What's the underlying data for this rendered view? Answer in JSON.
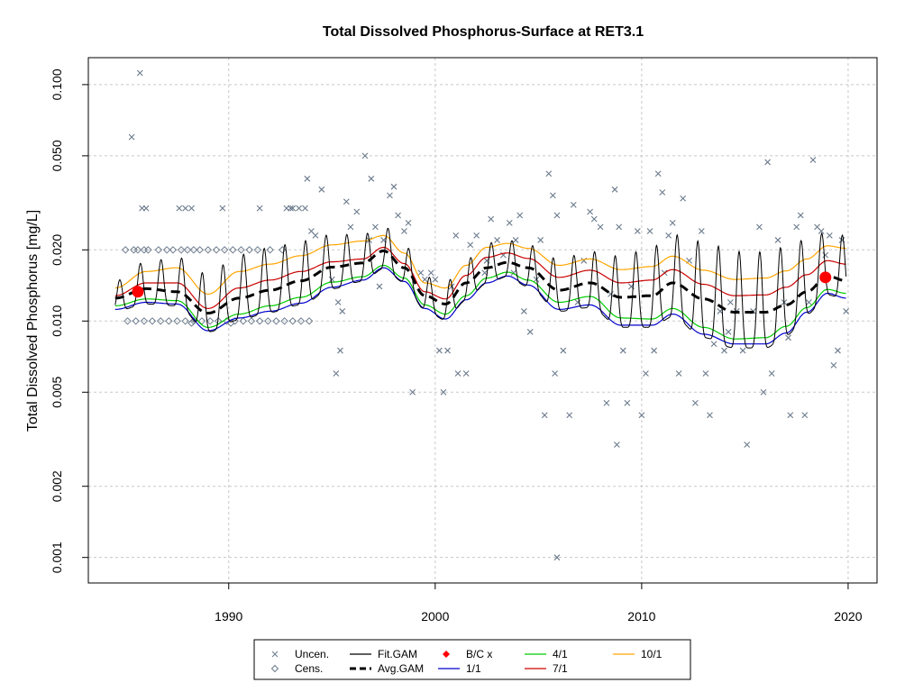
{
  "chart_data": {
    "type": "scatter",
    "title": "Total Dissolved Phosphorus-Surface at RET3.1",
    "xlabel": "",
    "ylabel": "Total Dissolved Phosphorus [mg/L]",
    "ylog": true,
    "xlim": [
      1983.2,
      2021.4
    ],
    "ylim": [
      0.00078,
      0.13
    ],
    "x_ticks": [
      1990,
      2000,
      2010,
      2020
    ],
    "x_tick_labels": [
      "1990",
      "2000",
      "2010",
      "2020"
    ],
    "y_ticks": [
      0.001,
      0.002,
      0.005,
      0.01,
      0.02,
      0.05,
      0.1
    ],
    "y_tick_labels": [
      "0.001",
      "0.002",
      "0.005",
      "0.010",
      "0.020",
      "0.050",
      "0.100"
    ],
    "grid": true,
    "legend_placement": "bottom",
    "colors": {
      "uncen": "#6b7a8c",
      "cens": "#6b7a8c",
      "fit_gam": "#000000",
      "avg_gam": "#000000",
      "bc": "#ff0000",
      "q1": "#0000cc",
      "q4": "#00cc00",
      "q7": "#cc0000",
      "q10": "#ffa500",
      "grid": "#c8c8c8"
    },
    "legend": [
      {
        "label": "Uncen.",
        "key": "uncen",
        "symbol": "x"
      },
      {
        "label": "Cens.",
        "key": "cens",
        "symbol": "diamond-open"
      },
      {
        "label": "Fit.GAM",
        "key": "fit_gam",
        "symbol": "line"
      },
      {
        "label": "Avg.GAM",
        "key": "avg_gam",
        "symbol": "dashed"
      },
      {
        "label": "B/C x",
        "key": "bc",
        "symbol": "diamond-filled"
      },
      {
        "label": "1/1",
        "key": "q1",
        "symbol": "line"
      },
      {
        "label": "4/1",
        "key": "q4",
        "symbol": "line"
      },
      {
        "label": "7/1",
        "key": "q7",
        "symbol": "line"
      },
      {
        "label": "10/1",
        "key": "q10",
        "symbol": "line"
      }
    ],
    "bc_points": [
      {
        "x": 1985.6,
        "y": 0.0133
      },
      {
        "x": 2018.9,
        "y": 0.0153
      }
    ],
    "avg_gam": {
      "x": [
        1984.5,
        1986,
        1987.5,
        1989,
        1990.5,
        1992,
        1993.5,
        1995,
        1996.5,
        1997.5,
        1998.5,
        1999.5,
        2000.5,
        2001.5,
        2002.5,
        2003.5,
        2004.5,
        2006,
        2007.5,
        2009,
        2010.5,
        2011.5,
        2013,
        2014.5,
        2016,
        2017,
        2018,
        2019,
        2019.9
      ],
      "y": [
        0.0125,
        0.0137,
        0.0133,
        0.0108,
        0.0125,
        0.0135,
        0.0148,
        0.0169,
        0.0176,
        0.0198,
        0.0168,
        0.0128,
        0.0118,
        0.0145,
        0.0168,
        0.0177,
        0.0168,
        0.0135,
        0.0145,
        0.0126,
        0.0128,
        0.0145,
        0.0124,
        0.0109,
        0.0109,
        0.0117,
        0.0133,
        0.0155,
        0.0148
      ]
    },
    "seasonal": {
      "q1": {
        "x": [
          1984.5,
          1986,
          1987.5,
          1989,
          1990.5,
          1992,
          1993.5,
          1995,
          1996.5,
          1997.5,
          1998.5,
          1999.5,
          2000.5,
          2001.5,
          2002.5,
          2003.5,
          2004.5,
          2006,
          2007.5,
          2009,
          2010.5,
          2011.5,
          2013,
          2014.5,
          2016,
          2017,
          2018,
          2019,
          2019.9
        ],
        "y": [
          0.0112,
          0.012,
          0.0118,
          0.0091,
          0.0103,
          0.011,
          0.0119,
          0.0139,
          0.0149,
          0.0168,
          0.0147,
          0.0113,
          0.0102,
          0.0123,
          0.0145,
          0.0155,
          0.0142,
          0.0112,
          0.0117,
          0.0096,
          0.0096,
          0.0107,
          0.0088,
          0.008,
          0.008,
          0.0089,
          0.0109,
          0.0131,
          0.0125
        ]
      },
      "q4": {
        "x": [
          1984.5,
          1986,
          1987.5,
          1989,
          1990.5,
          1992,
          1993.5,
          1995,
          1996.5,
          1997.5,
          1998.5,
          1999.5,
          2000.5,
          2001.5,
          2002.5,
          2003.5,
          2004.5,
          2006,
          2007.5,
          2009,
          2010.5,
          2011.5,
          2013,
          2014.5,
          2016,
          2017,
          2018,
          2019,
          2019.9
        ],
        "y": [
          0.0116,
          0.0124,
          0.0122,
          0.0094,
          0.0107,
          0.0116,
          0.0126,
          0.0146,
          0.0154,
          0.0172,
          0.0152,
          0.0117,
          0.0107,
          0.0128,
          0.0152,
          0.0161,
          0.0149,
          0.012,
          0.0127,
          0.0103,
          0.0102,
          0.0113,
          0.0094,
          0.0084,
          0.0085,
          0.0095,
          0.0114,
          0.0136,
          0.0131
        ]
      },
      "q7": {
        "x": [
          1984.5,
          1986,
          1987.5,
          1989,
          1990.5,
          1992,
          1993.5,
          1995,
          1996.5,
          1997.5,
          1998.5,
          1999.5,
          2000.5,
          2001.5,
          2002.5,
          2003.5,
          2004.5,
          2006,
          2007.5,
          2009,
          2010.5,
          2011.5,
          2013,
          2014.5,
          2016,
          2017,
          2018,
          2019,
          2019.9
        ],
        "y": [
          0.0128,
          0.0145,
          0.0145,
          0.0113,
          0.0138,
          0.0149,
          0.0162,
          0.0178,
          0.0183,
          0.0205,
          0.0175,
          0.0133,
          0.0124,
          0.0156,
          0.0186,
          0.0194,
          0.0184,
          0.0153,
          0.0164,
          0.0145,
          0.0149,
          0.0165,
          0.0143,
          0.0128,
          0.0129,
          0.0139,
          0.0157,
          0.018,
          0.0174
        ]
      },
      "q10": {
        "x": [
          1984.5,
          1986,
          1987.5,
          1989,
          1990.5,
          1992,
          1993.5,
          1995,
          1996.5,
          1997.5,
          1998.5,
          1999.5,
          2000.5,
          2001.5,
          2002.5,
          2003.5,
          2004.5,
          2006,
          2007.5,
          2009,
          2010.5,
          2011.5,
          2013,
          2014.5,
          2016,
          2017,
          2018,
          2019,
          2019.9
        ],
        "y": [
          0.0138,
          0.0162,
          0.0168,
          0.013,
          0.0162,
          0.0174,
          0.0189,
          0.021,
          0.0218,
          0.023,
          0.0194,
          0.0145,
          0.0138,
          0.0172,
          0.0205,
          0.0213,
          0.0203,
          0.0172,
          0.0183,
          0.0165,
          0.017,
          0.0188,
          0.0164,
          0.015,
          0.0152,
          0.0163,
          0.0183,
          0.0208,
          0.0203
        ]
      }
    },
    "fit_gam": {
      "envelope_x": [
        1984.5,
        1986,
        1987.5,
        1989,
        1990.5,
        1992,
        1993.5,
        1995,
        1996.5,
        1997.5,
        1998.5,
        1999.5,
        2000.5,
        2001.5,
        2002.5,
        2003.5,
        2004.5,
        2006,
        2007.5,
        2009,
        2010.5,
        2011.5,
        2013,
        2014.5,
        2016,
        2017,
        2018,
        2019,
        2019.9
      ],
      "envelope_low": [
        0.011,
        0.0118,
        0.0116,
        0.009,
        0.0101,
        0.0109,
        0.0117,
        0.0137,
        0.0147,
        0.0166,
        0.0146,
        0.0112,
        0.0101,
        0.0122,
        0.0144,
        0.0154,
        0.014,
        0.011,
        0.0114,
        0.0094,
        0.0094,
        0.0104,
        0.0085,
        0.0077,
        0.0077,
        0.0087,
        0.0107,
        0.0129,
        0.0123
      ],
      "envelope_high": [
        0.0148,
        0.0178,
        0.0186,
        0.0158,
        0.0191,
        0.0204,
        0.0218,
        0.0232,
        0.0233,
        0.0252,
        0.021,
        0.0154,
        0.0146,
        0.0182,
        0.0214,
        0.022,
        0.021,
        0.0183,
        0.0197,
        0.0188,
        0.0206,
        0.0232,
        0.0217,
        0.0197,
        0.0196,
        0.0206,
        0.0222,
        0.0238,
        0.023
      ],
      "x_start": 1984.5,
      "x_end": 2019.9,
      "peak_phase": 0.72
    },
    "uncen_points": [
      [
        1985.7,
        0.112
      ],
      [
        1985.3,
        0.06
      ],
      [
        1985.8,
        0.03
      ],
      [
        1986.0,
        0.03
      ],
      [
        1987.6,
        0.03
      ],
      [
        1987.9,
        0.03
      ],
      [
        1988.2,
        0.03
      ],
      [
        1989.7,
        0.03
      ],
      [
        1991.5,
        0.03
      ],
      [
        1992.8,
        0.03
      ],
      [
        1993.0,
        0.03
      ],
      [
        1993.4,
        0.03
      ],
      [
        1993.7,
        0.03
      ],
      [
        1993.1,
        0.03
      ],
      [
        1993.8,
        0.04
      ],
      [
        1994.5,
        0.036
      ],
      [
        1994.0,
        0.024
      ],
      [
        1994.2,
        0.023
      ],
      [
        1995.0,
        0.015
      ],
      [
        1995.3,
        0.012
      ],
      [
        1995.5,
        0.011
      ],
      [
        1995.2,
        0.006
      ],
      [
        1995.4,
        0.0075
      ],
      [
        1995.7,
        0.032
      ],
      [
        1995.9,
        0.025
      ],
      [
        1996.2,
        0.029
      ],
      [
        1996.6,
        0.05
      ],
      [
        1996.8,
        0.022
      ],
      [
        1996.9,
        0.04
      ],
      [
        1997.1,
        0.025
      ],
      [
        1997.3,
        0.014
      ],
      [
        1997.5,
        0.022
      ],
      [
        1997.8,
        0.034
      ],
      [
        1998.0,
        0.037
      ],
      [
        1998.2,
        0.028
      ],
      [
        1998.5,
        0.024
      ],
      [
        1998.7,
        0.026
      ],
      [
        1998.9,
        0.005
      ],
      [
        1999.3,
        0.016
      ],
      [
        1999.5,
        0.015
      ],
      [
        1999.8,
        0.016
      ],
      [
        2000.0,
        0.015
      ],
      [
        2000.2,
        0.0075
      ],
      [
        2000.4,
        0.005
      ],
      [
        2000.6,
        0.0075
      ],
      [
        2000.8,
        0.014
      ],
      [
        2001.0,
        0.023
      ],
      [
        2001.1,
        0.006
      ],
      [
        2001.5,
        0.006
      ],
      [
        2001.7,
        0.021
      ],
      [
        2002.0,
        0.023
      ],
      [
        2002.4,
        0.016
      ],
      [
        2002.7,
        0.027
      ],
      [
        2003.0,
        0.022
      ],
      [
        2003.3,
        0.019
      ],
      [
        2003.6,
        0.026
      ],
      [
        2003.9,
        0.022
      ],
      [
        2004.1,
        0.028
      ],
      [
        2004.3,
        0.011
      ],
      [
        2004.6,
        0.009
      ],
      [
        2004.9,
        0.015
      ],
      [
        2005.1,
        0.022
      ],
      [
        2005.3,
        0.004
      ],
      [
        2005.5,
        0.042
      ],
      [
        2005.7,
        0.034
      ],
      [
        2005.9,
        0.028
      ],
      [
        2005.8,
        0.006
      ],
      [
        2006.2,
        0.0075
      ],
      [
        2006.5,
        0.004
      ],
      [
        2006.7,
        0.031
      ],
      [
        2006.9,
        0.012
      ],
      [
        2007.2,
        0.018
      ],
      [
        2007.5,
        0.029
      ],
      [
        2007.7,
        0.027
      ],
      [
        2008.0,
        0.025
      ],
      [
        2008.3,
        0.0045
      ],
      [
        2008.5,
        0.013
      ],
      [
        2008.7,
        0.036
      ],
      [
        2008.9,
        0.025
      ],
      [
        2009.1,
        0.0075
      ],
      [
        2009.3,
        0.0045
      ],
      [
        2009.5,
        0.014
      ],
      [
        2009.8,
        0.024
      ],
      [
        2010.0,
        0.004
      ],
      [
        2010.2,
        0.006
      ],
      [
        2010.4,
        0.024
      ],
      [
        2010.6,
        0.0075
      ],
      [
        2010.8,
        0.042
      ],
      [
        2011.0,
        0.035
      ],
      [
        2011.3,
        0.023
      ],
      [
        2011.5,
        0.026
      ],
      [
        2011.8,
        0.006
      ],
      [
        2012.0,
        0.033
      ],
      [
        2012.3,
        0.018
      ],
      [
        2012.6,
        0.0045
      ],
      [
        2012.9,
        0.024
      ],
      [
        2013.1,
        0.006
      ],
      [
        2013.3,
        0.004
      ],
      [
        2013.5,
        0.008
      ],
      [
        2013.8,
        0.011
      ],
      [
        2014.0,
        0.0075
      ],
      [
        2014.3,
        0.012
      ],
      [
        2014.6,
        0.011
      ],
      [
        2014.9,
        0.0075
      ],
      [
        2015.1,
        0.003
      ],
      [
        2015.4,
        0.011
      ],
      [
        2015.7,
        0.025
      ],
      [
        2015.9,
        0.005
      ],
      [
        2016.1,
        0.047
      ],
      [
        2016.3,
        0.006
      ],
      [
        2016.6,
        0.022
      ],
      [
        2016.9,
        0.012
      ],
      [
        2017.2,
        0.004
      ],
      [
        2017.5,
        0.025
      ],
      [
        2017.7,
        0.028
      ],
      [
        2017.9,
        0.004
      ],
      [
        2018.1,
        0.012
      ],
      [
        2018.3,
        0.048
      ],
      [
        2018.5,
        0.025
      ],
      [
        2018.7,
        0.024
      ],
      [
        2018.9,
        0.019
      ],
      [
        2019.1,
        0.023
      ],
      [
        2019.3,
        0.0065
      ],
      [
        2019.5,
        0.0075
      ],
      [
        2019.7,
        0.022
      ],
      [
        2019.9,
        0.011
      ],
      [
        2005.9,
        0.001
      ],
      [
        2008.8,
        0.003
      ],
      [
        2002.5,
        0.018
      ],
      [
        2003.8,
        0.016
      ],
      [
        2011.1,
        0.016
      ],
      [
        2014.2,
        0.009
      ],
      [
        2017.1,
        0.0085
      ]
    ],
    "cens_points": [
      [
        1985.0,
        0.02
      ],
      [
        1985.4,
        0.02
      ],
      [
        1985.6,
        0.02
      ],
      [
        1985.9,
        0.02
      ],
      [
        1986.1,
        0.02
      ],
      [
        1986.6,
        0.02
      ],
      [
        1987.0,
        0.02
      ],
      [
        1987.3,
        0.02
      ],
      [
        1987.7,
        0.02
      ],
      [
        1988.0,
        0.02
      ],
      [
        1988.3,
        0.02
      ],
      [
        1988.6,
        0.02
      ],
      [
        1989.0,
        0.02
      ],
      [
        1989.4,
        0.02
      ],
      [
        1989.8,
        0.02
      ],
      [
        1990.2,
        0.02
      ],
      [
        1990.6,
        0.02
      ],
      [
        1991.0,
        0.02
      ],
      [
        1991.4,
        0.02
      ],
      [
        1992.0,
        0.02
      ],
      [
        1992.6,
        0.02
      ],
      [
        1985.1,
        0.01
      ],
      [
        1985.5,
        0.01
      ],
      [
        1985.9,
        0.01
      ],
      [
        1986.3,
        0.01
      ],
      [
        1986.7,
        0.01
      ],
      [
        1987.1,
        0.01
      ],
      [
        1987.5,
        0.01
      ],
      [
        1987.9,
        0.01
      ],
      [
        1988.3,
        0.01
      ],
      [
        1988.7,
        0.01
      ],
      [
        1989.1,
        0.01
      ],
      [
        1989.5,
        0.01
      ],
      [
        1989.9,
        0.01
      ],
      [
        1990.3,
        0.01
      ],
      [
        1990.7,
        0.01
      ],
      [
        1991.1,
        0.01
      ],
      [
        1991.5,
        0.01
      ],
      [
        1991.9,
        0.01
      ],
      [
        1992.3,
        0.01
      ],
      [
        1992.7,
        0.01
      ],
      [
        1993.1,
        0.01
      ],
      [
        1993.5,
        0.01
      ],
      [
        1993.9,
        0.01
      ],
      [
        1988.2,
        0.0098
      ],
      [
        1990.1,
        0.0098
      ]
    ]
  }
}
